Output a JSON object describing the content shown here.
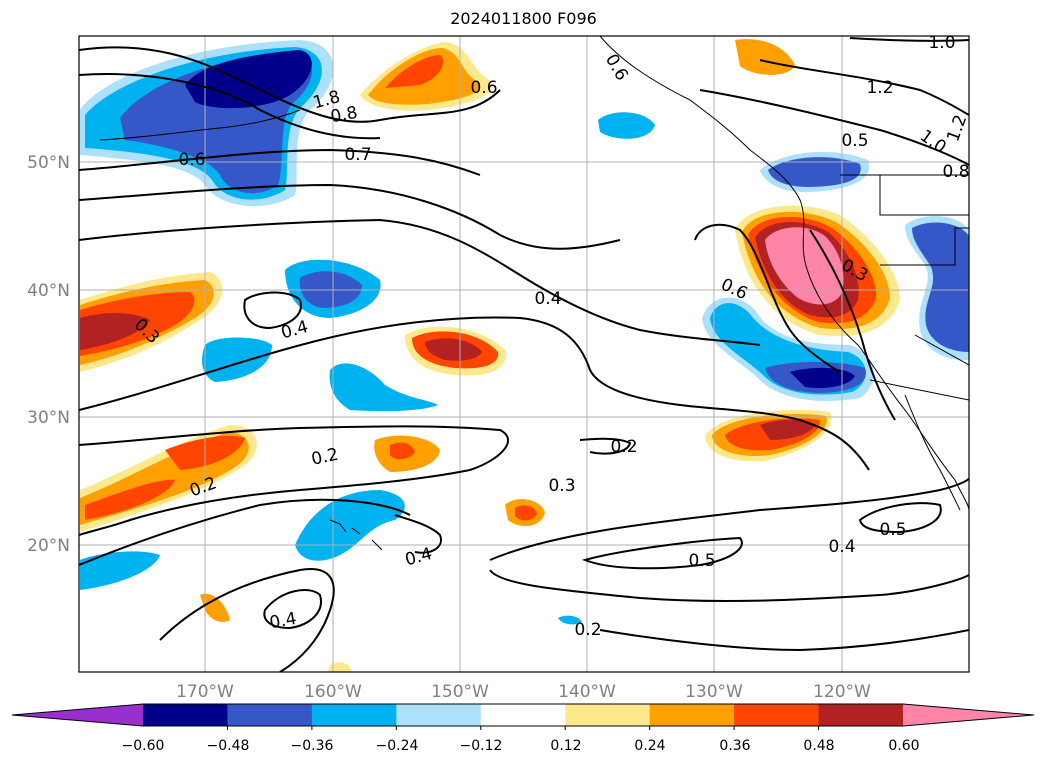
{
  "title": "2024011800 F096",
  "map": {
    "lat_labels": [
      "50°N",
      "40°N",
      "30°N",
      "20°N"
    ],
    "lon_labels": [
      "170°W",
      "160°W",
      "150°W",
      "140°W",
      "130°W",
      "120°W"
    ],
    "grid": true,
    "contour_labels": [
      "1.0",
      "1.2",
      "0.5",
      "1.0",
      "1.2",
      "0.8",
      "0.7",
      "0.6",
      "0.6",
      "1.8",
      "0.8",
      "0.6",
      "0.4",
      "0.4",
      "0.3",
      "0.6",
      "0.3",
      "0.2",
      "0.2",
      "0.2",
      "0.3",
      "0.4",
      "0.5",
      "0.4",
      "0.5",
      "0.4",
      "0.2"
    ]
  },
  "colorbar": {
    "ticks": [
      "−0.60",
      "−0.48",
      "−0.36",
      "−0.24",
      "−0.12",
      "0.12",
      "0.24",
      "0.36",
      "0.48",
      "0.60"
    ],
    "colors": [
      "#9a2fcf",
      "#00008b",
      "#3657c8",
      "#00b2f0",
      "#ade0fb",
      "#ffffff",
      "#fde98c",
      "#ff9f00",
      "#ff4500",
      "#b22222",
      "#ff85a8"
    ],
    "extend": "both"
  }
}
